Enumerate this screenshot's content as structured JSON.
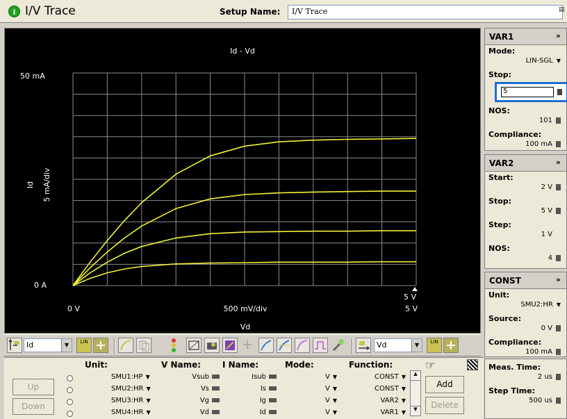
{
  "window": {
    "title": "I/V Trace",
    "setup_label": "Setup Name:",
    "setup_value": "I/V Trace"
  },
  "graph": {
    "title": "Id - Vd",
    "y_label": "Id",
    "y_scale": "5 mA/div",
    "y_max_label": "50 mA",
    "y_min_label": "0 A",
    "x_label": "Vd",
    "x_scale": "500 mV/div",
    "x_min_label": "0 V",
    "x_max_label": "5 V",
    "marker_label": "5 V",
    "trace_color": "#f2f23a",
    "grid_color": "#8c8c8c"
  },
  "chart_data": {
    "type": "line",
    "title": "Id - Vd",
    "xlabel": "Vd",
    "ylabel": "Id",
    "xlim": [
      0,
      5
    ],
    "ylim": [
      0,
      0.05
    ],
    "series": [
      {
        "x": [
          0,
          0.25,
          0.5,
          0.75,
          1,
          1.5,
          2,
          2.5,
          3,
          3.5,
          4,
          4.5,
          5
        ],
        "values": [
          0,
          0.0055,
          0.0106,
          0.0153,
          0.0195,
          0.0262,
          0.0305,
          0.0328,
          0.0338,
          0.0342,
          0.0344,
          0.0345,
          0.0346
        ]
      },
      {
        "x": [
          0,
          0.25,
          0.5,
          0.75,
          1,
          1.5,
          2,
          2.5,
          3,
          3.5,
          4,
          4.5,
          5
        ],
        "values": [
          0,
          0.0042,
          0.0079,
          0.0112,
          0.014,
          0.0181,
          0.0204,
          0.0214,
          0.0218,
          0.022,
          0.0221,
          0.0222,
          0.0222
        ]
      },
      {
        "x": [
          0,
          0.25,
          0.5,
          0.75,
          1,
          1.5,
          2,
          2.5,
          3,
          3.5,
          4,
          4.5,
          5
        ],
        "values": [
          0,
          0.003,
          0.0055,
          0.0076,
          0.0092,
          0.0112,
          0.0122,
          0.0126,
          0.0127,
          0.0128,
          0.0128,
          0.0129,
          0.0129
        ]
      },
      {
        "x": [
          0,
          0.25,
          0.5,
          0.75,
          1,
          1.5,
          2,
          2.5,
          3,
          3.5,
          4,
          4.5,
          5
        ],
        "values": [
          0,
          0.0017,
          0.003,
          0.0039,
          0.0045,
          0.0051,
          0.0053,
          0.0054,
          0.0055,
          0.0055,
          0.0055,
          0.0056,
          0.0056
        ]
      }
    ],
    "grid": true
  },
  "var1": {
    "title": "VAR1",
    "mode_label": "Mode:",
    "mode_value": "LIN-SGL",
    "stop_label": "Stop:",
    "stop_value": "5",
    "nos_label": "NOS:",
    "nos_value": "101",
    "compliance_label": "Compliance:",
    "compliance_value": "100 mA"
  },
  "var2": {
    "title": "VAR2",
    "start_label": "Start:",
    "start_value": "2 V",
    "stop_label": "Stop:",
    "stop_value": "5 V",
    "step_label": "Step:",
    "step_value": "1 V",
    "nos_label": "NOS:",
    "nos_value": "4"
  },
  "const": {
    "title": "CONST",
    "unit_label": "Unit:",
    "unit_value": "SMU2:HR",
    "source_label": "Source:",
    "source_value": "0 V",
    "compliance_label": "Compliance:",
    "compliance_value": "100 mA"
  },
  "meas": {
    "meas_time_label": "Meas. Time:",
    "meas_time_value": "2 us",
    "step_time_label": "Step Time:",
    "step_time_value": "500 us"
  },
  "toolbar": {
    "y_axis_value": "Id",
    "x_axis_value": "Vd",
    "y_scale_badge": "LIN",
    "x_scale_badge": "LIN"
  },
  "channels": {
    "headers": {
      "unit": "Unit:",
      "vname": "V Name:",
      "iname": "I Name:",
      "mode": "Mode:",
      "function": "Function:"
    },
    "up_label": "Up",
    "down_label": "Down",
    "add_label": "Add",
    "delete_label": "Delete",
    "rows": [
      {
        "unit": "SMU1:HP",
        "vname": "Vsub",
        "iname": "Isub",
        "mode": "V",
        "function": "CONST"
      },
      {
        "unit": "SMU2:HR",
        "vname": "Vs",
        "iname": "Is",
        "mode": "V",
        "function": "CONST"
      },
      {
        "unit": "SMU3:HR",
        "vname": "Vg",
        "iname": "Ig",
        "mode": "V",
        "function": "VAR2"
      },
      {
        "unit": "SMU4:HR",
        "vname": "Vd",
        "iname": "Id",
        "mode": "V",
        "function": "VAR1"
      }
    ]
  }
}
